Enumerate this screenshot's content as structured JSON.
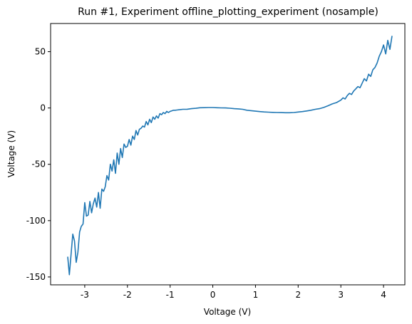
{
  "chart_data": {
    "type": "line",
    "title": "Run #1, Experiment offline_plotting_experiment (nosample)",
    "xlabel": "Voltage (V)",
    "ylabel": "Voltage (V)",
    "xlim": [
      -3.8,
      4.5
    ],
    "ylim": [
      -157,
      75
    ],
    "xticks": [
      -3,
      -2,
      -1,
      0,
      1,
      2,
      3,
      4
    ],
    "yticks": [
      50,
      0,
      -50,
      -100,
      -150
    ],
    "xtick_labels": [
      "-3",
      "-2",
      "-1",
      "0",
      "1",
      "2",
      "3",
      "4"
    ],
    "ytick_labels": [
      "50",
      "0",
      "-50",
      "-100",
      "-150"
    ],
    "grid": false,
    "series_color": "#1f77b4",
    "x": [
      -3.4,
      -3.36,
      -3.32,
      -3.28,
      -3.24,
      -3.2,
      -3.16,
      -3.12,
      -3.08,
      -3.04,
      -3.0,
      -2.96,
      -2.92,
      -2.88,
      -2.84,
      -2.8,
      -2.76,
      -2.72,
      -2.68,
      -2.64,
      -2.6,
      -2.56,
      -2.52,
      -2.48,
      -2.44,
      -2.4,
      -2.36,
      -2.32,
      -2.28,
      -2.24,
      -2.2,
      -2.16,
      -2.12,
      -2.08,
      -2.04,
      -2.0,
      -1.96,
      -1.92,
      -1.88,
      -1.84,
      -1.8,
      -1.76,
      -1.72,
      -1.68,
      -1.64,
      -1.6,
      -1.56,
      -1.52,
      -1.48,
      -1.44,
      -1.4,
      -1.36,
      -1.32,
      -1.28,
      -1.24,
      -1.2,
      -1.16,
      -1.12,
      -1.08,
      -1.04,
      -1.0,
      -0.96,
      -0.92,
      -0.88,
      -0.84,
      -0.8,
      -0.7,
      -0.6,
      -0.5,
      -0.4,
      -0.3,
      -0.2,
      -0.1,
      0.0,
      0.1,
      0.2,
      0.3,
      0.4,
      0.5,
      0.6,
      0.7,
      0.8,
      0.9,
      1.0,
      1.1,
      1.2,
      1.3,
      1.4,
      1.5,
      1.6,
      1.7,
      1.8,
      1.9,
      2.0,
      2.1,
      2.2,
      2.3,
      2.4,
      2.5,
      2.6,
      2.7,
      2.8,
      2.9,
      3.0,
      3.05,
      3.1,
      3.15,
      3.2,
      3.25,
      3.3,
      3.35,
      3.4,
      3.45,
      3.5,
      3.55,
      3.6,
      3.65,
      3.7,
      3.75,
      3.8,
      3.85,
      3.9,
      3.95,
      4.0,
      4.05,
      4.1,
      4.15,
      4.2
    ],
    "y": [
      -132,
      -148,
      -130,
      -112,
      -118,
      -137,
      -128,
      -110,
      -105,
      -103,
      -84,
      -96,
      -95,
      -83,
      -93,
      -85,
      -80,
      -88,
      -75,
      -89,
      -72,
      -74,
      -70,
      -60,
      -64,
      -50,
      -56,
      -46,
      -58,
      -40,
      -50,
      -36,
      -44,
      -32,
      -35,
      -34,
      -28,
      -33,
      -25,
      -28,
      -20,
      -24,
      -19,
      -18,
      -16,
      -17,
      -12,
      -15,
      -10,
      -13,
      -8,
      -10,
      -7,
      -9,
      -5,
      -6,
      -4,
      -5,
      -3,
      -4,
      -3,
      -2.5,
      -2,
      -2,
      -1.8,
      -1.6,
      -1.2,
      -1.1,
      -0.6,
      -0.3,
      0.2,
      0.3,
      0.4,
      0.4,
      0.2,
      0.1,
      0.0,
      -0.2,
      -0.6,
      -0.8,
      -1.2,
      -2.0,
      -2.4,
      -2.8,
      -3.2,
      -3.5,
      -3.7,
      -3.9,
      -4.0,
      -4.1,
      -4.2,
      -4.2,
      -4.0,
      -3.6,
      -3.2,
      -2.6,
      -2.0,
      -1.2,
      -0.6,
      0.5,
      2.0,
      3.6,
      4.8,
      7.0,
      9.0,
      8.0,
      11.0,
      13.0,
      12.0,
      15.0,
      17.0,
      19.0,
      18.0,
      22.0,
      26.0,
      24.0,
      30.0,
      28.0,
      34.0,
      36.0,
      40.0,
      46.0,
      50.0,
      56.0,
      48.0,
      60.0,
      52.0,
      64.0
    ]
  }
}
